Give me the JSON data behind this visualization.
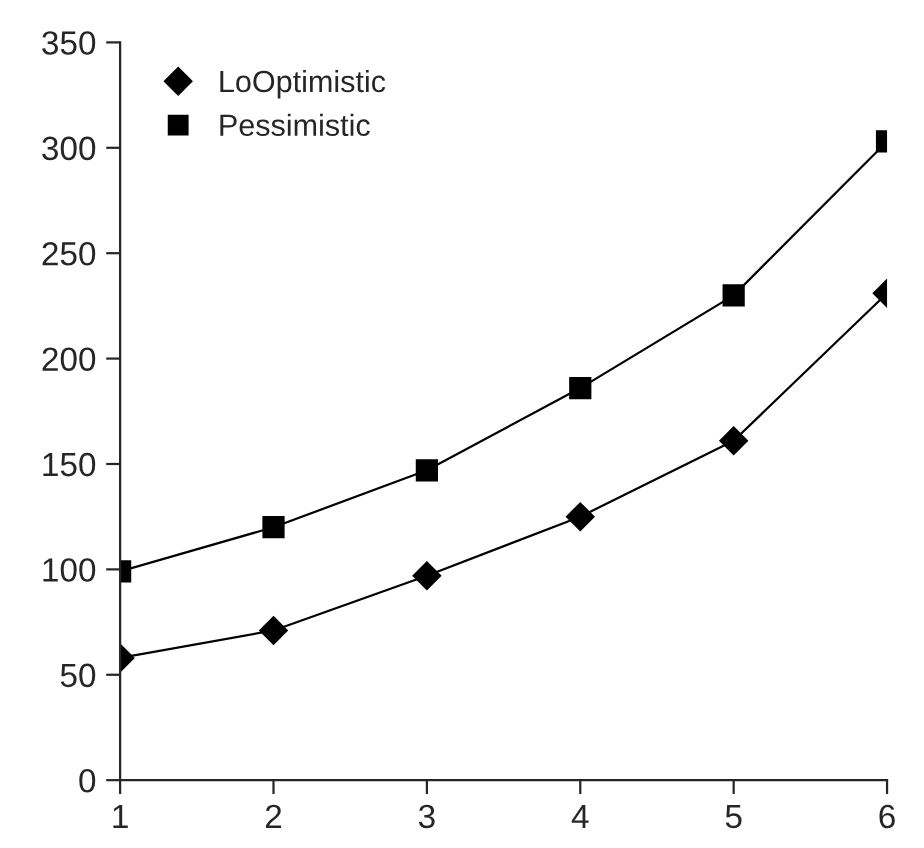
{
  "chart_data": {
    "type": "line",
    "x": [
      1,
      2,
      3,
      4,
      5,
      6
    ],
    "series": [
      {
        "name": "LoOptimistic",
        "color": "#000000",
        "marker": "diamond",
        "values": [
          58,
          71,
          97,
          125,
          161,
          231
        ]
      },
      {
        "name": "Pessimistic",
        "color": "#000000",
        "marker": "square",
        "values": [
          99,
          120,
          147,
          186,
          230,
          303
        ]
      }
    ],
    "xlim": [
      1,
      6
    ],
    "xticks": [
      1,
      2,
      3,
      4,
      5,
      6
    ],
    "ylim": [
      0,
      350
    ],
    "yticks": [
      0,
      50,
      100,
      150,
      200,
      250,
      300,
      350
    ],
    "grid": false,
    "legend": "top left",
    "line_style": "solid"
  }
}
